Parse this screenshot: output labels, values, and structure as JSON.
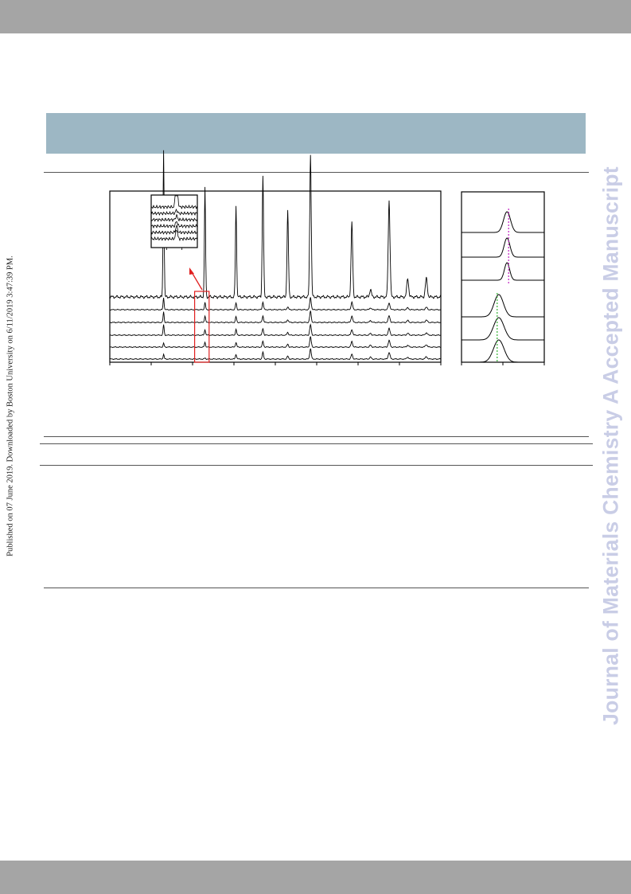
{
  "side_stamp": "Published on 07 June 2019. Downloaded by Boston University on 6/11/2019 3:47:39 PM.",
  "watermark": "Journal of Materials Chemistry A Accepted Manuscript",
  "colors": {
    "header_bar": "#a5a5a5",
    "caption_box": "#9db7c4",
    "watermark": "#c9cde6",
    "highlight_box": "#e02020",
    "arrow": "#e02020",
    "dashed_line_top": "#c020c0",
    "dashed_line_bottom": "#30b030"
  },
  "chart_data": [
    {
      "type": "line",
      "description_key": "main-xrd-panel",
      "series_count": 6,
      "peak_positions": [
        1.3,
        2.3,
        3.05,
        3.7,
        4.3,
        4.85,
        5.85,
        6.3,
        6.75,
        7.2,
        7.65
      ],
      "series": [
        {
          "peaks": [
            0.1,
            0.02,
            0.1,
            0.14,
            0.06,
            0.22,
            0.1,
            0.04,
            0.14,
            0.04,
            0.05
          ]
        },
        {
          "peaks": [
            0.08,
            0.1,
            0.1,
            0.12,
            0.06,
            0.22,
            0.12,
            0.04,
            0.14,
            0.04,
            0.05
          ]
        },
        {
          "peaks": [
            0.22,
            0.12,
            0.12,
            0.14,
            0.06,
            0.22,
            0.12,
            0.04,
            0.14,
            0.04,
            0.05
          ]
        },
        {
          "peaks": [
            0.22,
            0.14,
            0.12,
            0.14,
            0.06,
            0.24,
            0.14,
            0.04,
            0.14,
            0.04,
            0.05
          ]
        },
        {
          "peaks": [
            0.25,
            0.15,
            0.14,
            0.16,
            0.06,
            0.26,
            0.16,
            0.04,
            0.14,
            0.04,
            0.05
          ]
        },
        {
          "peaks": [
            0.95,
            0.7,
            0.58,
            0.78,
            0.55,
            0.92,
            0.48,
            0.05,
            0.62,
            0.12,
            0.12
          ]
        }
      ],
      "x_ticks": 8,
      "grid": false,
      "legend": "none"
    },
    {
      "type": "line",
      "description_key": "inset-zoom",
      "series_count": 6,
      "peak_center": 0.55
    },
    {
      "type": "line",
      "description_key": "right-peak-panel",
      "series_count": 6,
      "top_group_center": 0.55,
      "bottom_group_center": 0.45,
      "widths": [
        0.06,
        0.05,
        0.045,
        0.08,
        0.09,
        0.09
      ]
    }
  ]
}
